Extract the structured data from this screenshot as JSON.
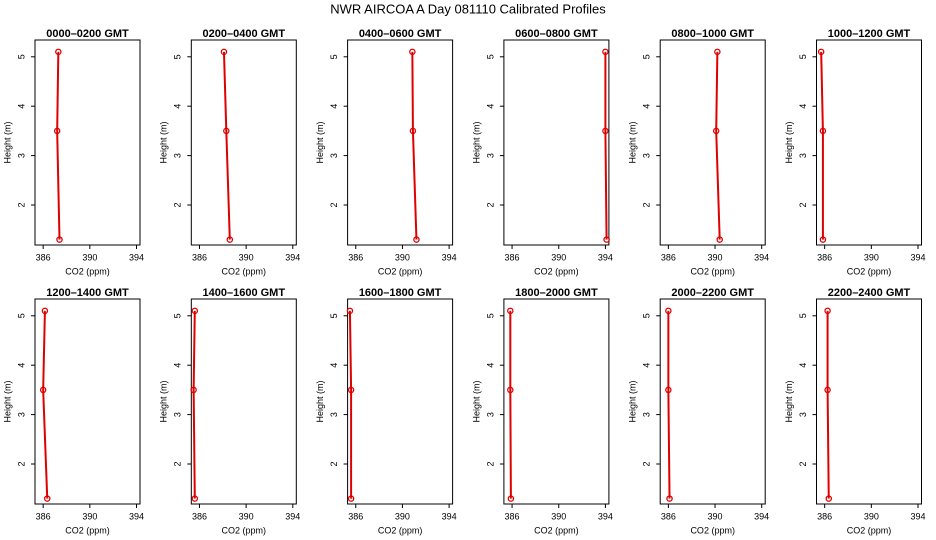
{
  "title": "NWR AIRCOA A  Day 081110  Calibrated Profiles",
  "chart_data": [
    {
      "type": "line",
      "title": "0000–0200 GMT",
      "xlabel": "CO2 (ppm)",
      "ylabel": "Height (m)",
      "color": "#e00000",
      "x": [
        387.3,
        387.2,
        387.4
      ],
      "values": [
        5.1,
        3.5,
        1.3
      ],
      "xlim": [
        385.3,
        394.3
      ],
      "xticks": [
        386,
        390,
        394
      ],
      "ylim": [
        1.19,
        5.34
      ],
      "yticks": [
        2,
        3,
        4,
        5
      ]
    },
    {
      "type": "line",
      "title": "0200–0400 GMT",
      "xlabel": "CO2 (ppm)",
      "ylabel": "Height (m)",
      "color": "#e00000",
      "x": [
        388.1,
        388.3,
        388.6
      ],
      "values": [
        5.1,
        3.5,
        1.3
      ],
      "xlim": [
        385.3,
        394.3
      ],
      "xticks": [
        386,
        390,
        394
      ],
      "ylim": [
        1.19,
        5.34
      ],
      "yticks": [
        2,
        3,
        4,
        5
      ]
    },
    {
      "type": "line",
      "title": "0400–0600 GMT",
      "xlabel": "CO2 (ppm)",
      "ylabel": "Height (m)",
      "color": "#e00000",
      "x": [
        390.85,
        390.9,
        391.2
      ],
      "values": [
        5.1,
        3.5,
        1.3
      ],
      "xlim": [
        385.3,
        394.3
      ],
      "xticks": [
        386,
        390,
        394
      ],
      "ylim": [
        1.19,
        5.34
      ],
      "yticks": [
        2,
        3,
        4,
        5
      ]
    },
    {
      "type": "line",
      "title": "0600–0800 GMT",
      "xlabel": "CO2 (ppm)",
      "ylabel": "Height (m)",
      "color": "#e00000",
      "x": [
        394.0,
        394.0,
        394.1
      ],
      "values": [
        5.1,
        3.5,
        1.3
      ],
      "xlim": [
        385.3,
        394.3
      ],
      "xticks": [
        386,
        390,
        394
      ],
      "ylim": [
        1.19,
        5.34
      ],
      "yticks": [
        2,
        3,
        4,
        5
      ]
    },
    {
      "type": "line",
      "title": "0800–1000 GMT",
      "xlabel": "CO2 (ppm)",
      "ylabel": "Height (m)",
      "color": "#e00000",
      "x": [
        390.2,
        390.1,
        390.4
      ],
      "values": [
        5.1,
        3.5,
        1.3
      ],
      "xlim": [
        385.3,
        394.3
      ],
      "xticks": [
        386,
        390,
        394
      ],
      "ylim": [
        1.19,
        5.34
      ],
      "yticks": [
        2,
        3,
        4,
        5
      ]
    },
    {
      "type": "line",
      "title": "1000–1200 GMT",
      "xlabel": "CO2 (ppm)",
      "ylabel": "Height (m)",
      "color": "#e00000",
      "x": [
        385.7,
        385.85,
        385.85
      ],
      "values": [
        5.1,
        3.5,
        1.3
      ],
      "xlim": [
        385.3,
        394.3
      ],
      "xticks": [
        386,
        390,
        394
      ],
      "ylim": [
        1.19,
        5.34
      ],
      "yticks": [
        2,
        3,
        4,
        5
      ]
    },
    {
      "type": "line",
      "title": "1200–1400 GMT",
      "xlabel": "CO2 (ppm)",
      "ylabel": "Height (m)",
      "color": "#e00000",
      "x": [
        386.15,
        386.0,
        386.35
      ],
      "values": [
        5.1,
        3.5,
        1.3
      ],
      "xlim": [
        385.3,
        394.3
      ],
      "xticks": [
        386,
        390,
        394
      ],
      "ylim": [
        1.19,
        5.34
      ],
      "yticks": [
        2,
        3,
        4,
        5
      ]
    },
    {
      "type": "line",
      "title": "1400–1600 GMT",
      "xlabel": "CO2 (ppm)",
      "ylabel": "Height (m)",
      "color": "#e00000",
      "x": [
        385.6,
        385.5,
        385.6
      ],
      "values": [
        5.1,
        3.5,
        1.3
      ],
      "xlim": [
        385.3,
        394.3
      ],
      "xticks": [
        386,
        390,
        394
      ],
      "ylim": [
        1.19,
        5.34
      ],
      "yticks": [
        2,
        3,
        4,
        5
      ]
    },
    {
      "type": "line",
      "title": "1600–1800 GMT",
      "xlabel": "CO2 (ppm)",
      "ylabel": "Height (m)",
      "color": "#e00000",
      "x": [
        385.5,
        385.6,
        385.6
      ],
      "values": [
        5.1,
        3.5,
        1.3
      ],
      "xlim": [
        385.3,
        394.3
      ],
      "xticks": [
        386,
        390,
        394
      ],
      "ylim": [
        1.19,
        5.34
      ],
      "yticks": [
        2,
        3,
        4,
        5
      ]
    },
    {
      "type": "line",
      "title": "1800–2000 GMT",
      "xlabel": "CO2 (ppm)",
      "ylabel": "Height (m)",
      "color": "#e00000",
      "x": [
        385.85,
        385.85,
        385.9
      ],
      "values": [
        5.1,
        3.5,
        1.3
      ],
      "xlim": [
        385.3,
        394.3
      ],
      "xticks": [
        386,
        390,
        394
      ],
      "ylim": [
        1.19,
        5.34
      ],
      "yticks": [
        2,
        3,
        4,
        5
      ]
    },
    {
      "type": "line",
      "title": "2000–2200 GMT",
      "xlabel": "CO2 (ppm)",
      "ylabel": "Height (m)",
      "color": "#e00000",
      "x": [
        386.0,
        386.0,
        386.1
      ],
      "values": [
        5.1,
        3.5,
        1.3
      ],
      "xlim": [
        385.3,
        394.3
      ],
      "xticks": [
        386,
        390,
        394
      ],
      "ylim": [
        1.19,
        5.34
      ],
      "yticks": [
        2,
        3,
        4,
        5
      ]
    },
    {
      "type": "line",
      "title": "2200–2400 GMT",
      "xlabel": "CO2 (ppm)",
      "ylabel": "Height (m)",
      "color": "#e00000",
      "x": [
        386.25,
        386.25,
        386.35
      ],
      "values": [
        5.1,
        3.5,
        1.3
      ],
      "xlim": [
        385.3,
        394.3
      ],
      "xticks": [
        386,
        390,
        394
      ],
      "ylim": [
        1.19,
        5.34
      ],
      "yticks": [
        2,
        3,
        4,
        5
      ]
    }
  ]
}
